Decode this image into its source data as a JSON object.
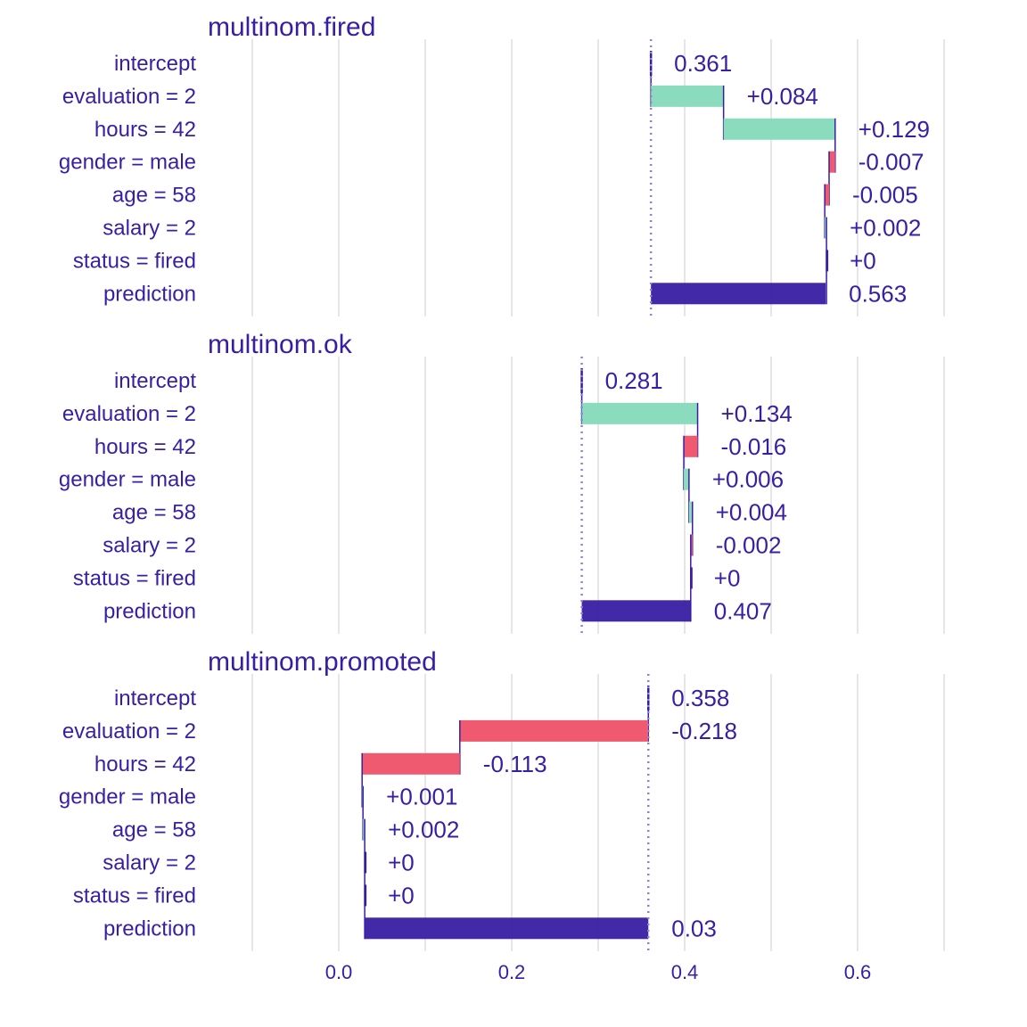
{
  "chart_data": {
    "type": "bar",
    "variant": "break-down waterfall",
    "x_ticks": [
      0.0,
      0.2,
      0.4,
      0.6
    ],
    "x_tick_labels": [
      "0.0",
      "0.2",
      "0.4",
      "0.6"
    ],
    "xlim": [
      -0.2,
      0.7
    ],
    "grid": true,
    "colors": {
      "positive": "#8bdcbe",
      "negative": "#f05a71",
      "prediction": "#371ea3",
      "text": "#371ea3",
      "baseline": "#8d7fe0"
    },
    "row_labels": [
      "intercept",
      "evaluation = 2",
      "hours = 42",
      "gender = male",
      "age = 58",
      "salary = 2",
      "status = fired",
      "prediction"
    ],
    "panels": [
      {
        "title": "multinom.fired",
        "intercept": 0.361,
        "contributions": [
          0.084,
          0.129,
          -0.007,
          -0.005,
          0.002,
          0
        ],
        "prediction": 0.563,
        "value_labels": [
          "0.361",
          "+0.084",
          "+0.129",
          "-0.007",
          "-0.005",
          "+0.002",
          "+0",
          "0.563"
        ]
      },
      {
        "title": "multinom.ok",
        "intercept": 0.281,
        "contributions": [
          0.134,
          -0.016,
          0.006,
          0.004,
          -0.002,
          0
        ],
        "prediction": 0.407,
        "value_labels": [
          "0.281",
          "+0.134",
          "-0.016",
          "+0.006",
          "+0.004",
          "-0.002",
          "+0",
          "0.407"
        ]
      },
      {
        "title": "multinom.promoted",
        "intercept": 0.358,
        "contributions": [
          -0.218,
          -0.113,
          0.001,
          0.002,
          0,
          0
        ],
        "prediction": 0.03,
        "value_labels": [
          "0.358",
          "-0.218",
          "-0.113",
          "+0.001",
          "+0.002",
          "+0",
          "+0",
          "0.03"
        ]
      }
    ]
  }
}
